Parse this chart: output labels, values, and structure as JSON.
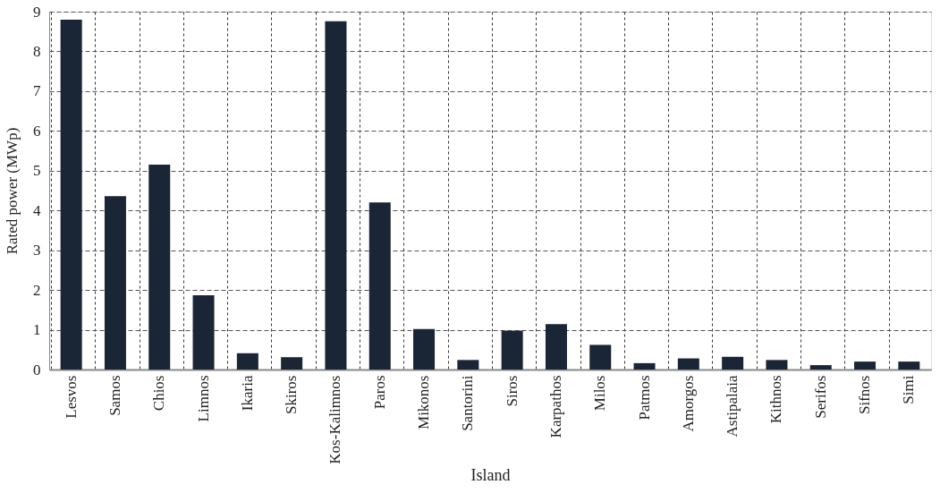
{
  "chart_data": {
    "type": "bar",
    "xlabel": "Island",
    "ylabel": "Rated power (MWp)",
    "categories": [
      "Lesvos",
      "Samos",
      "Chios",
      "Limnos",
      "Ikaria",
      "Skiros",
      "Kos-Kalimnos",
      "Paros",
      "Mikonos",
      "Santorini",
      "Siros",
      "Karpathos",
      "Milos",
      "Patmos",
      "Amorgos",
      "Astipalaia",
      "Kithnos",
      "Serifos",
      "Sifnos",
      "Simi"
    ],
    "values": [
      8.8,
      4.36,
      5.15,
      1.87,
      0.41,
      0.31,
      8.76,
      4.2,
      1.02,
      0.24,
      0.98,
      1.14,
      0.62,
      0.16,
      0.28,
      0.32,
      0.24,
      0.11,
      0.2,
      0.2
    ],
    "color": "#1a2535",
    "ylim": [
      0,
      9
    ],
    "yticks": [
      0,
      1,
      2,
      3,
      4,
      5,
      6,
      7,
      8,
      9
    ],
    "grid": true
  }
}
